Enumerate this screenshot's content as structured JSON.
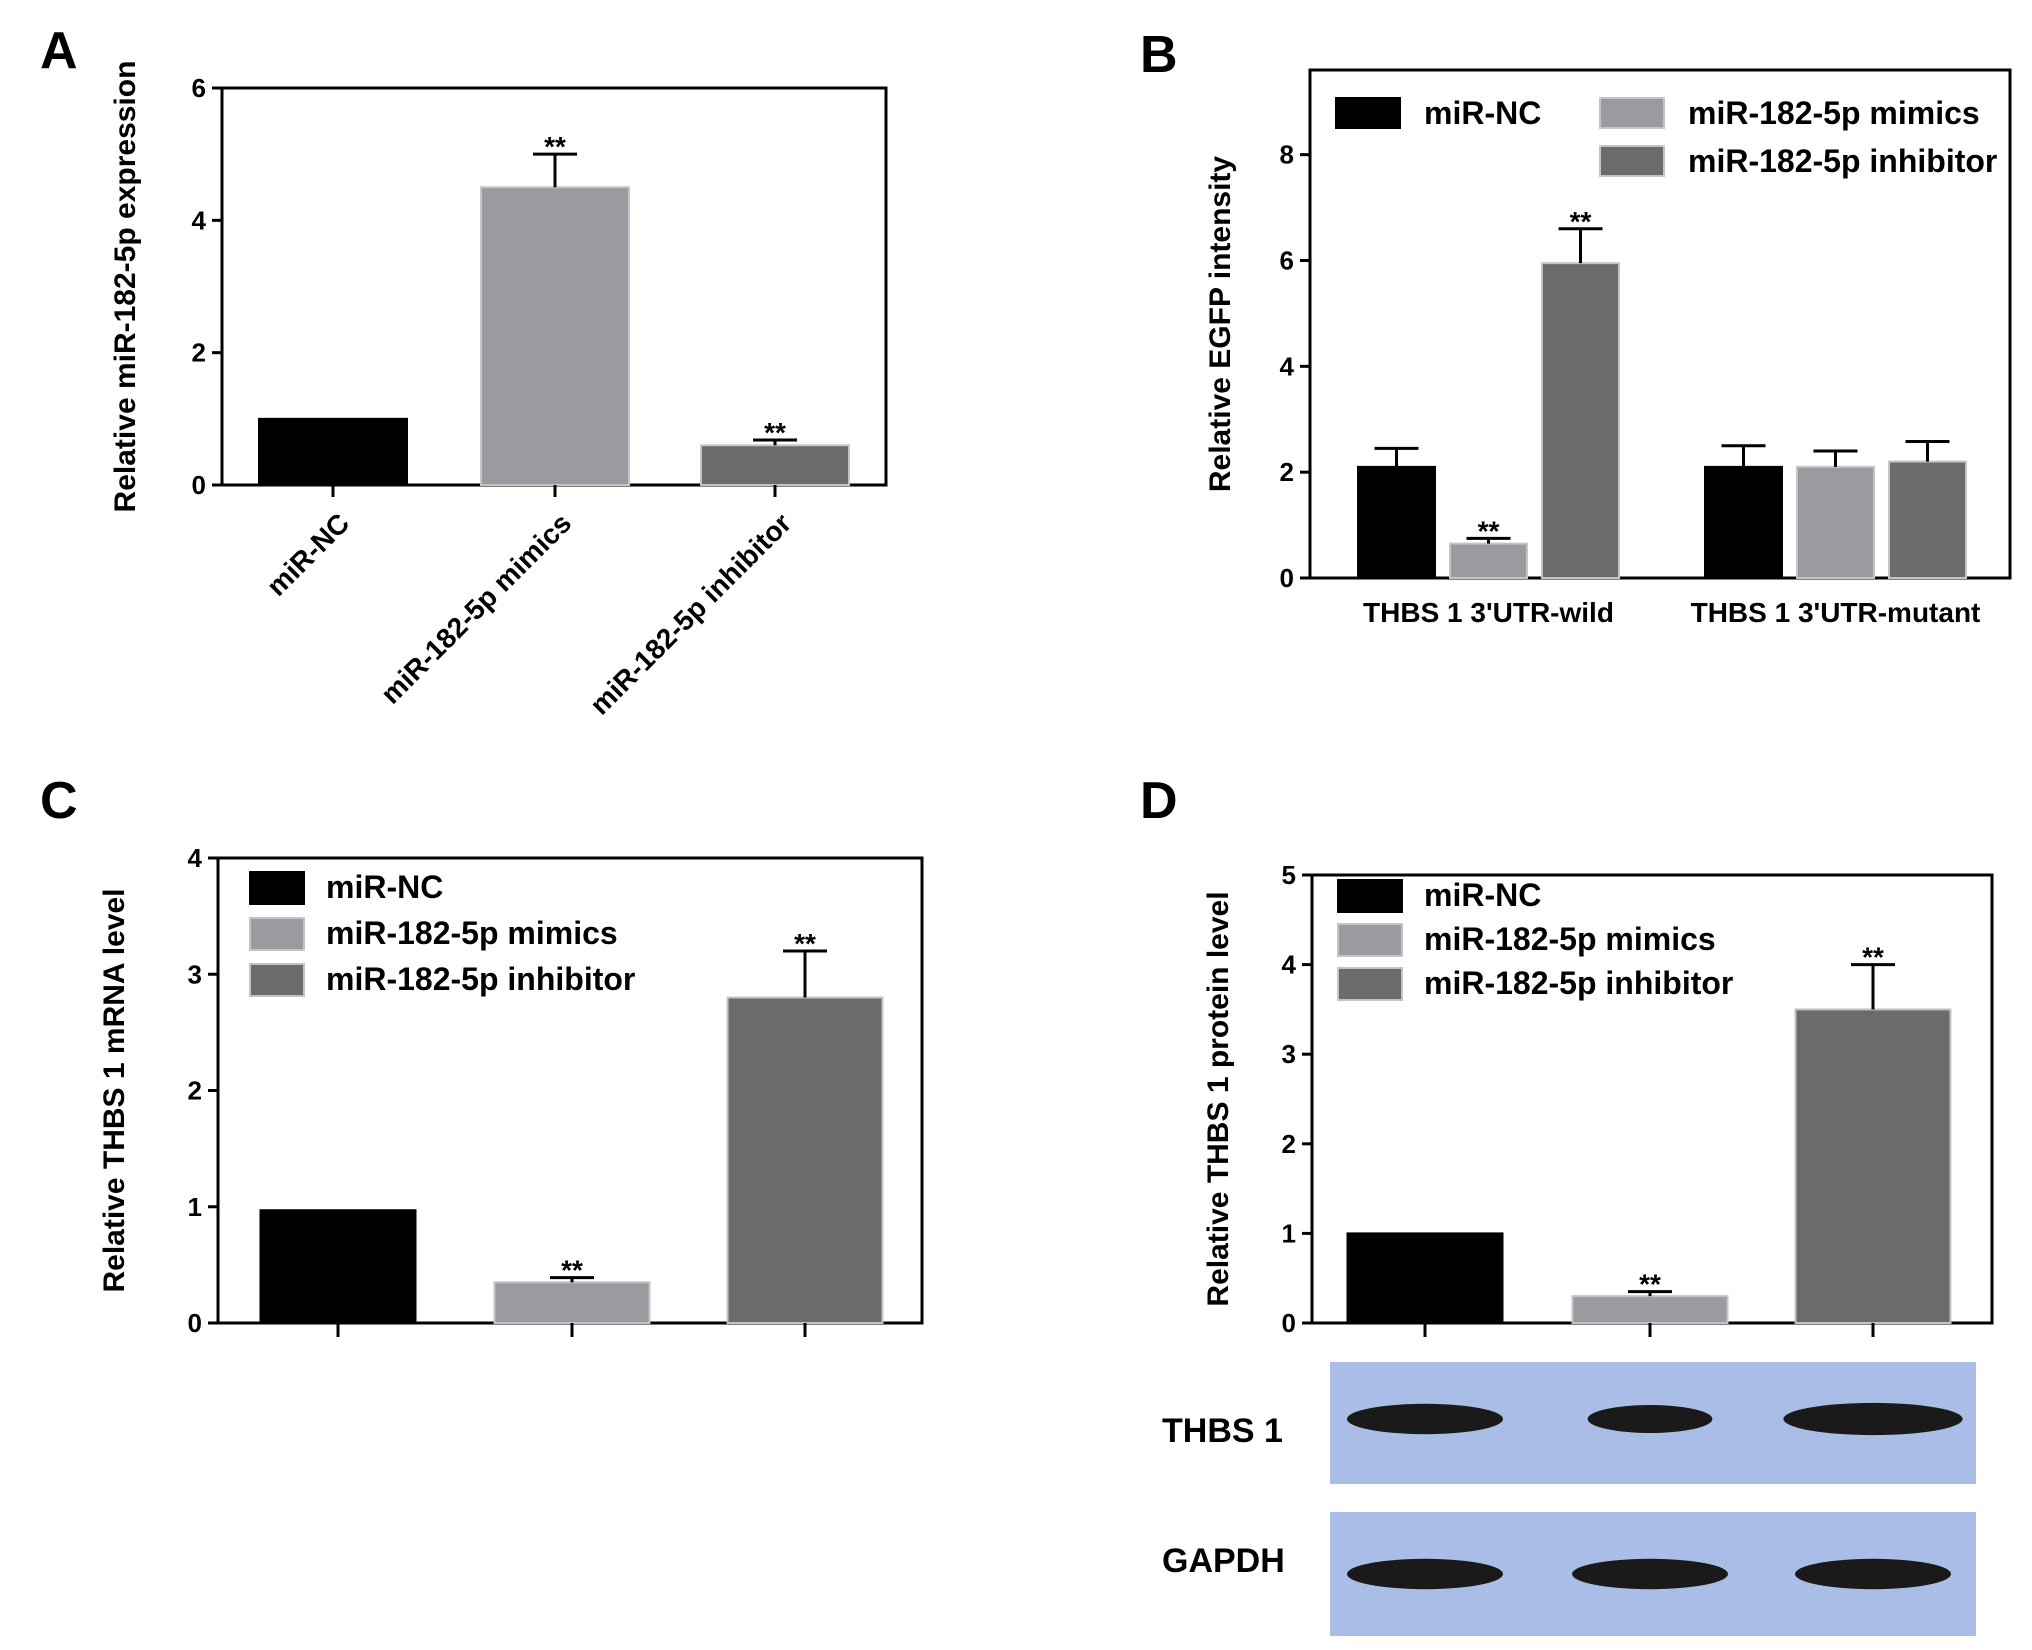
{
  "colors": {
    "mir_nc": "#000000",
    "mimics": "#9a9aa0",
    "inhibitor": "#6b6b6b",
    "blot_bg": "#a9bde6",
    "band": "#1a1a1a"
  },
  "chart_data": [
    {
      "panel": "A",
      "type": "bar",
      "ylabel": "Relative miR-182-5p expression",
      "ylim": [
        0,
        6
      ],
      "yticks": [
        "0",
        "2",
        "4",
        "6"
      ],
      "categories": [
        "miR-NC",
        "miR-182-5p mimics",
        "miR-182-5p inhibitor"
      ],
      "values": [
        1.0,
        4.5,
        0.6
      ],
      "errors": [
        0,
        0.5,
        0.08
      ],
      "significance": [
        "",
        "**",
        "**"
      ],
      "grid": false
    },
    {
      "panel": "B",
      "type": "bar",
      "ylabel": "Relative EGFP intensity",
      "ylim": [
        0,
        9.6
      ],
      "yticks": [
        "0",
        "2",
        "4",
        "6",
        "8"
      ],
      "groups": [
        "THBS 1 3'UTR-wild",
        "THBS 1 3'UTR-mutant"
      ],
      "series": [
        {
          "name": "miR-NC",
          "values": [
            2.1,
            2.1
          ],
          "errors": [
            0.35,
            0.4
          ],
          "significance": [
            "",
            ""
          ]
        },
        {
          "name": "miR-182-5p mimics",
          "values": [
            0.65,
            2.1
          ],
          "errors": [
            0.1,
            0.3
          ],
          "significance": [
            "**",
            ""
          ]
        },
        {
          "name": "miR-182-5p inhibitor",
          "values": [
            5.95,
            2.2
          ],
          "errors": [
            0.65,
            0.38
          ],
          "significance": [
            "**",
            ""
          ]
        }
      ],
      "legend": "top",
      "grid": false
    },
    {
      "panel": "C",
      "type": "bar",
      "ylabel": "Relative THBS 1 mRNA level",
      "ylim": [
        0,
        4
      ],
      "yticks": [
        "0",
        "1",
        "2",
        "3",
        "4"
      ],
      "categories": [
        "miR-NC",
        "miR-182-5p mimics",
        "miR-182-5p inhibitor"
      ],
      "values": [
        0.97,
        0.35,
        2.8
      ],
      "errors": [
        0,
        0.04,
        0.4
      ],
      "significance": [
        "",
        "**",
        "**"
      ],
      "legend": "top-left",
      "grid": false
    },
    {
      "panel": "D",
      "type": "bar",
      "ylabel": "Relative THBS 1 protein level",
      "ylim": [
        0,
        5
      ],
      "yticks": [
        "0",
        "1",
        "2",
        "3",
        "4",
        "5"
      ],
      "categories": [
        "miR-NC",
        "miR-182-5p mimics",
        "miR-182-5p inhibitor"
      ],
      "values": [
        1.0,
        0.3,
        3.5
      ],
      "errors": [
        0,
        0.05,
        0.5
      ],
      "significance": [
        "",
        "**",
        "**"
      ],
      "legend": "top-left",
      "grid": false
    }
  ],
  "legend_labels": [
    "miR-NC",
    "miR-182-5p mimics",
    "miR-182-5p inhibitor"
  ],
  "blot": {
    "rows": [
      {
        "label": "THBS 1",
        "intensity": [
          1.0,
          0.8,
          1.15
        ]
      },
      {
        "label": "GAPDH",
        "intensity": [
          1.0,
          1.0,
          1.0
        ]
      }
    ]
  }
}
